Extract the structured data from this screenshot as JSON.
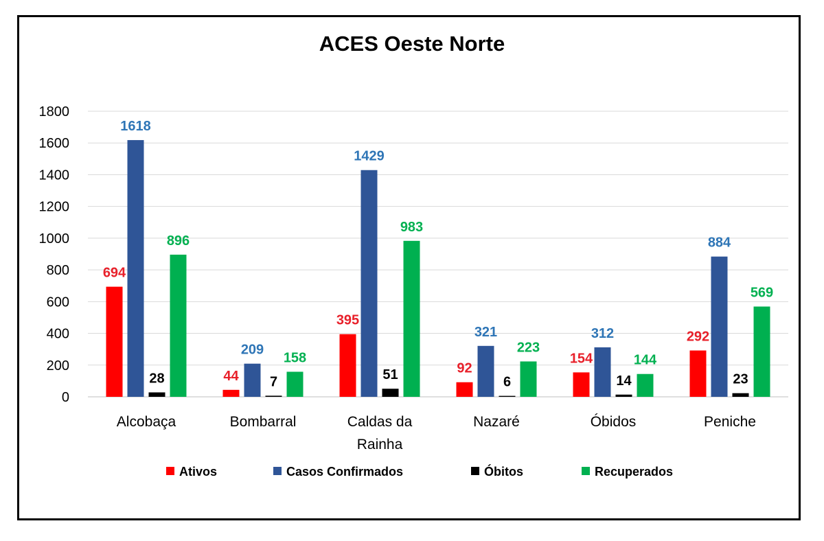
{
  "chart_data": {
    "type": "bar",
    "title": "ACES Oeste Norte",
    "xlabel": "",
    "ylabel": "",
    "ylim": [
      0,
      1800
    ],
    "yticks": [
      0,
      200,
      400,
      600,
      800,
      1000,
      1200,
      1400,
      1600,
      1800
    ],
    "grid": true,
    "legend_position": "bottom",
    "categories": [
      "Alcobaça",
      "Bombarral",
      "Caldas da Rainha",
      "Nazaré",
      "Óbidos",
      "Peniche"
    ],
    "series": [
      {
        "name": "Ativos",
        "color": "#ff0000",
        "label_color": "#e8202a",
        "values": [
          694,
          44,
          395,
          92,
          154,
          292
        ]
      },
      {
        "name": "Casos Confirmados",
        "color": "#2f5597",
        "label_color": "#2e75b6",
        "values": [
          1618,
          209,
          1429,
          321,
          312,
          884
        ]
      },
      {
        "name": "Óbitos",
        "color": "#000000",
        "label_color": "#000000",
        "values": [
          28,
          7,
          51,
          6,
          14,
          23
        ]
      },
      {
        "name": "Recuperados",
        "color": "#00b050",
        "label_color": "#00b050",
        "values": [
          896,
          158,
          983,
          223,
          144,
          569
        ]
      }
    ]
  }
}
